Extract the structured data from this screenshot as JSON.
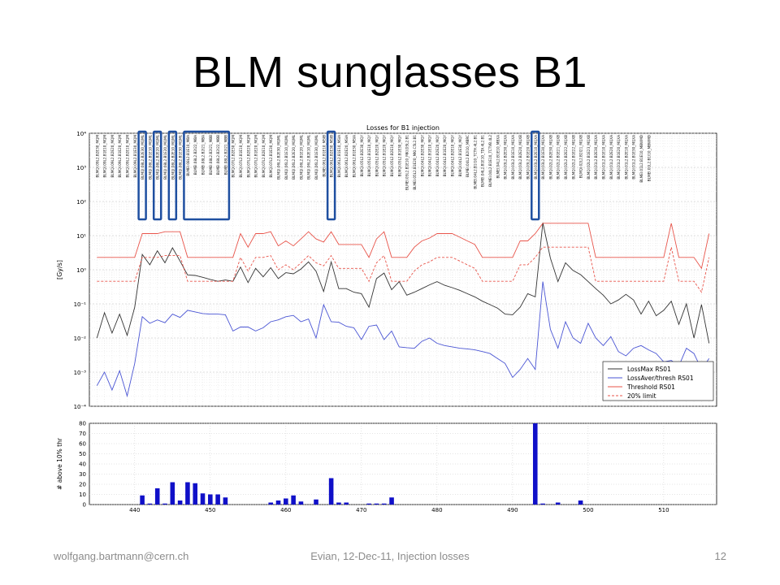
{
  "slide": {
    "title": "BLM sunglasses B1",
    "footer_left": "wolfgang.bartmann@cern.ch",
    "footer_center": "Evian, 12-Dec-11, Injection losses",
    "page_number": "12"
  },
  "colors": {
    "loss_max": "#333333",
    "loss_aver": "#4a55d4",
    "threshold": "#e8544a",
    "limit20": "#e8544a",
    "bars": "#1010c8",
    "highlight": "#1f4fa0"
  },
  "chart_data": [
    {
      "type": "line",
      "title": "Losses for B1 injection",
      "ylabel": "[Gy/s]",
      "yscale": "log",
      "ylim": [
        0.0001,
        10000
      ],
      "yticks": [
        "10⁻⁴",
        "10⁻³",
        "10⁻²",
        "10⁻¹",
        "10⁰",
        "10¹",
        "10²",
        "10³",
        "10⁴"
      ],
      "xlim": [
        434,
        517
      ],
      "grid": true,
      "legend_position": "lower-right",
      "monitor_labels": [
        "BLMQI.09L2.B2E30_MQM",
        "BLMQI.09L2.B1E10_MQM",
        "BLMQI.09L2.B2E20_MQM",
        "BLMQI.09L2.B1E20_MQM",
        "BLMQI.09L2.B2E10_MQM",
        "BLMQI.09L2.B1E30_MQM",
        "BLMQI.08L2.B2E30_MQML",
        "BLMQI.08L2.B1E10_MQML",
        "BLMQI.08L2.B2E20_MQML",
        "BLMQI.08L2.B1E20_MQML",
        "BLMQI.08L2.B2E10_MQML",
        "BLMQI.08L2.B1E30_MQML",
        "BLMEI.08L2.B1E10_MBA",
        "BLMEI.08L2.B2I22_MBA",
        "BLMEI.08L2.B2I21_MBA",
        "BLMEI.08L2.B2I21_MBB",
        "BLMEI.08L2.B2I22_MBB",
        "BLMEI.08L2.B2I21_MBB",
        "BLMQI.07L2.B2E30_MQM",
        "BLMQI.07L2.B1E10_MQM",
        "BLMQI.07L2.B2E20_MQM",
        "BLMQI.07L2.B1E20_MQM",
        "BLMQI.07L2.B2E10_MQM",
        "BLMQI.07L2.B1E30_MQM",
        "BLMQI.06L2.B2E30_MQML",
        "BLMQI.06L2.B1E10_MQML",
        "BLMQI.06L2.B2E20_MQML",
        "BLMQI.06L2.B1E20_MQML",
        "BLMQI.06L2.B2E10_MQML",
        "BLMQI.06L2.B1E30_MQML",
        "BLMEI.06L2.B1E10_MSIB",
        "BLMQI.06L2.B2E30_MSIB",
        "BLMQI.06L2.B1E10_MSIA",
        "BLMQI.06L2.B2E20_MSIA",
        "BLMQI.06L2.B1E30_MSIA",
        "BLMQI.05L2.B2E30_MQY",
        "BLMQI.05L2.B1E10_MQY",
        "BLMQI.05L2.B2E20_MQY",
        "BLMQI.05L2.B1E20_MQY",
        "BLMQI.05L2.B2E10_MQY",
        "BLMQI.05L2.B1E30_MQY",
        "BLMEI.05L2.B1E10_MKI.D5L2.B1",
        "BLMEI.05L2.B1E20_MKI.C5L2.B1",
        "BLMQI.04L2.B2E30_MQY",
        "BLMQI.04L2.B1E10_MQY",
        "BLMQI.04L2.B2E20_MQY",
        "BLMQI.04L2.B1E20_MQY",
        "BLMQI.04L2.B2E10_MQY",
        "BLMQI.04L2.B1E30_MQY",
        "BLMEI.04L2.B2I10_MBRC",
        "BLMEI.04L2.B1I10_TCTH.4L2.B1",
        "BLMEI.04L2.B1E10_TDI.4L2.B1",
        "BLMEI.04L2.B1E10_TCTVB.4L2",
        "BLMEI.04L2.B1E10_MBXA",
        "BLMQI.03L2.B2E30_MQXA",
        "BLMQI.03L2.B1E10_MQXA",
        "BLMQI.03L2.B2E20_MQXB",
        "BLMQI.03L2.B1E20_MQXB",
        "BLMQI.03L2.B2E10_MQXA",
        "BLMQI.03L2.B1E30_MQXA",
        "BLMQI.02L2.B2E30_MQXB",
        "BLMQI.02L2.B1E21_MQXB",
        "BLMQI.02L2.B2E22_MQXB",
        "BLMQI.02L2.B1E22_MQXB",
        "BLMQI.02L2.B2I21_MQXB",
        "BLMQI.02L2.B1E23_MQXB",
        "BLMQI.01L2.B2E30_MQXA",
        "BLMQI.01L2.B1E10_MQXA",
        "BLMQI.01L2.B2E20_MQXA",
        "BLMQI.01L2.B1E20_MQXA",
        "BLMQI.01L2.B2E10_MQXA",
        "BLMQI.01L2.B1E30_MQXA",
        "BLMEI.01L2.B1E10_MBWMD",
        "BLMEI.01L2.B1I10_MBWMD"
      ],
      "x": [
        435,
        436,
        437,
        438,
        439,
        440,
        441,
        442,
        443,
        444,
        445,
        446,
        447,
        448,
        449,
        450,
        451,
        452,
        453,
        454,
        455,
        456,
        457,
        458,
        459,
        460,
        461,
        462,
        463,
        464,
        465,
        466,
        467,
        468,
        469,
        470,
        471,
        472,
        473,
        474,
        475,
        476,
        477,
        478,
        479,
        480,
        481,
        482,
        483,
        484,
        485,
        486,
        487,
        488,
        489,
        490,
        491,
        492,
        493,
        494,
        495,
        496,
        497,
        498,
        499,
        500,
        501,
        502,
        503,
        504,
        505,
        506,
        507,
        508,
        509,
        510,
        511,
        512,
        513,
        514,
        515,
        516
      ],
      "series": [
        {
          "name": "LossMax RS01",
          "style": "solid",
          "values": [
            0.01,
            0.055,
            0.014,
            0.05,
            0.012,
            0.08,
            2.8,
            1.4,
            3.6,
            1.6,
            4.4,
            1.8,
            0.7,
            0.68,
            0.6,
            0.52,
            0.46,
            0.5,
            0.46,
            1.2,
            0.42,
            1.1,
            0.62,
            1.15,
            0.55,
            0.82,
            0.76,
            1.05,
            1.7,
            0.9,
            0.23,
            1.7,
            0.28,
            0.28,
            0.22,
            0.2,
            0.08,
            0.55,
            0.8,
            0.26,
            0.45,
            0.18,
            0.22,
            0.28,
            0.36,
            0.45,
            0.35,
            0.3,
            0.25,
            0.2,
            0.16,
            0.12,
            0.095,
            0.075,
            0.05,
            0.048,
            0.08,
            0.2,
            0.16,
            24,
            2.2,
            0.45,
            1.6,
            0.95,
            0.72,
            0.45,
            0.28,
            0.18,
            0.1,
            0.13,
            0.19,
            0.13,
            0.05,
            0.12,
            0.045,
            0.065,
            0.12,
            0.025,
            0.1,
            0.01,
            0.095,
            0.007
          ]
        },
        {
          "name": "LossAver/thresh RS01",
          "style": "solid",
          "values": [
            0.0004,
            0.001,
            0.0003,
            0.0011,
            0.0002,
            0.0018,
            0.042,
            0.027,
            0.034,
            0.028,
            0.05,
            0.04,
            0.065,
            0.058,
            0.052,
            0.05,
            0.05,
            0.048,
            0.016,
            0.021,
            0.021,
            0.016,
            0.02,
            0.03,
            0.034,
            0.042,
            0.046,
            0.03,
            0.036,
            0.01,
            0.094,
            0.03,
            0.029,
            0.022,
            0.02,
            0.009,
            0.022,
            0.024,
            0.009,
            0.016,
            0.0055,
            0.0052,
            0.005,
            0.008,
            0.01,
            0.007,
            0.006,
            0.0055,
            0.005,
            0.0048,
            0.0045,
            0.004,
            0.0035,
            0.0025,
            0.0018,
            0.0007,
            0.0012,
            0.0025,
            0.0012,
            0.45,
            0.018,
            0.005,
            0.03,
            0.01,
            0.007,
            0.027,
            0.01,
            0.006,
            0.011,
            0.004,
            0.003,
            0.005,
            0.006,
            0.0045,
            0.0035,
            0.002,
            0.0022,
            0.0015,
            0.005,
            0.0035,
            0.0012,
            0.0025
          ]
        },
        {
          "name": "Threshold RS01",
          "style": "solid",
          "values": [
            2.3,
            2.3,
            2.3,
            2.3,
            2.3,
            2.3,
            11.5,
            11.5,
            11.5,
            13,
            13,
            13,
            2.3,
            2.3,
            2.3,
            2.3,
            2.3,
            2.3,
            2.3,
            11.5,
            4.6,
            11.5,
            11.5,
            13,
            5,
            7,
            5,
            8,
            13,
            8,
            6.5,
            13,
            5.5,
            5.5,
            5.5,
            5.5,
            2.3,
            8,
            13,
            2.3,
            2.3,
            2.3,
            4.6,
            7,
            8.5,
            11.5,
            11.5,
            11.5,
            9,
            7,
            5.5,
            2.3,
            2.3,
            2.3,
            2.3,
            2.3,
            7,
            7,
            11.5,
            23,
            23,
            23,
            23,
            23,
            23,
            23,
            2.3,
            2.3,
            2.3,
            2.3,
            2.3,
            2.3,
            2.3,
            2.3,
            2.3,
            2.3,
            23,
            2.3,
            2.3,
            2.3,
            1.1,
            11.5
          ]
        },
        {
          "name": "20% limit",
          "style": "dashed",
          "values": [
            0.46,
            0.46,
            0.46,
            0.46,
            0.46,
            0.46,
            2.3,
            2.3,
            2.3,
            2.6,
            2.6,
            2.6,
            0.46,
            0.46,
            0.46,
            0.46,
            0.46,
            0.46,
            0.46,
            2.3,
            0.92,
            2.3,
            2.3,
            2.6,
            1.0,
            1.4,
            1.0,
            1.6,
            2.6,
            1.6,
            1.3,
            2.6,
            1.1,
            1.1,
            1.1,
            1.1,
            0.46,
            1.6,
            2.6,
            0.46,
            0.46,
            0.46,
            0.92,
            1.4,
            1.7,
            2.3,
            2.3,
            2.3,
            1.8,
            1.4,
            1.1,
            0.46,
            0.46,
            0.46,
            0.46,
            0.46,
            1.4,
            1.4,
            2.3,
            4.6,
            4.6,
            4.6,
            4.6,
            4.6,
            4.6,
            4.6,
            0.46,
            0.46,
            0.46,
            0.46,
            0.46,
            0.46,
            0.46,
            0.46,
            0.46,
            0.46,
            4.6,
            0.46,
            0.46,
            0.46,
            0.22,
            2.3
          ]
        }
      ]
    },
    {
      "type": "bar",
      "ylabel": "# above 10% thr",
      "ylim": [
        0,
        80
      ],
      "yticks": [
        0,
        10,
        20,
        30,
        40,
        50,
        60,
        70,
        80
      ],
      "xlim": [
        434,
        517
      ],
      "xticks": [
        440,
        450,
        460,
        470,
        480,
        490,
        500,
        510
      ],
      "grid": true,
      "bars": [
        {
          "x": 441,
          "value": 9
        },
        {
          "x": 442,
          "value": 1
        },
        {
          "x": 443,
          "value": 16
        },
        {
          "x": 444,
          "value": 1
        },
        {
          "x": 445,
          "value": 22
        },
        {
          "x": 446,
          "value": 4
        },
        {
          "x": 447,
          "value": 22
        },
        {
          "x": 448,
          "value": 21
        },
        {
          "x": 449,
          "value": 11
        },
        {
          "x": 450,
          "value": 10
        },
        {
          "x": 451,
          "value": 10
        },
        {
          "x": 452,
          "value": 7
        },
        {
          "x": 458,
          "value": 2
        },
        {
          "x": 459,
          "value": 4
        },
        {
          "x": 460,
          "value": 6
        },
        {
          "x": 461,
          "value": 9
        },
        {
          "x": 462,
          "value": 3
        },
        {
          "x": 464,
          "value": 5
        },
        {
          "x": 466,
          "value": 26
        },
        {
          "x": 467,
          "value": 2
        },
        {
          "x": 468,
          "value": 2
        },
        {
          "x": 471,
          "value": 1
        },
        {
          "x": 472,
          "value": 1
        },
        {
          "x": 473,
          "value": 1
        },
        {
          "x": 474,
          "value": 7
        },
        {
          "x": 493,
          "value": 80
        },
        {
          "x": 494,
          "value": 1
        },
        {
          "x": 496,
          "value": 2
        },
        {
          "x": 499,
          "value": 4
        }
      ]
    }
  ]
}
